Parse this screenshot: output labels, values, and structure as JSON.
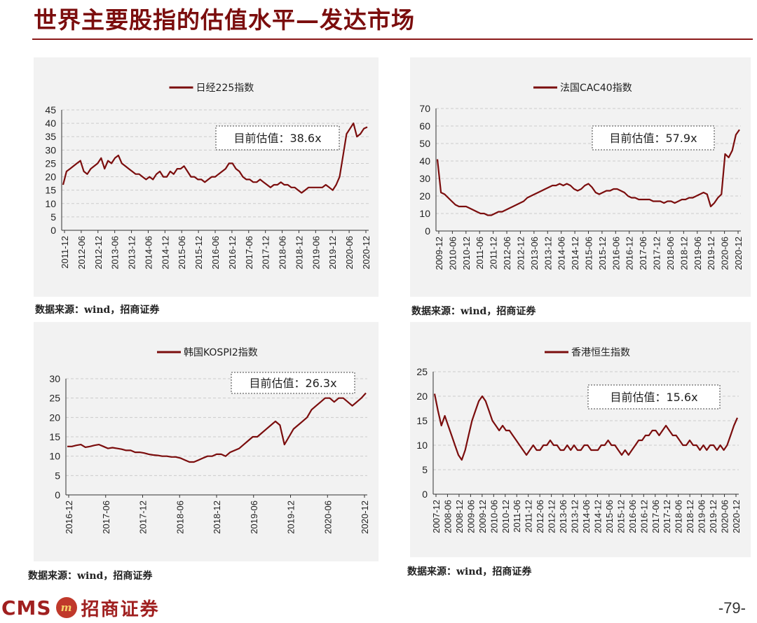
{
  "header": {
    "title": "世界主要股指的估值水平—发达市场"
  },
  "footer": {
    "brand_en": "CMS",
    "brand_cn": "招商证券",
    "page_number": "-79-"
  },
  "colors": {
    "line": "#7b0d0d",
    "title": "#7b0d0d",
    "panel_bg": "#f2f2f2",
    "grid": "#cccccc"
  },
  "chart_data": [
    {
      "type": "line",
      "title": "日经225指数",
      "annotation": "目前估值：38.6x",
      "ylim": [
        0,
        45
      ],
      "yticks": [
        0,
        5,
        10,
        15,
        20,
        25,
        30,
        35,
        40,
        45
      ],
      "xlabels": [
        "2011-12",
        "2012-06",
        "2012-12",
        "2013-06",
        "2013-12",
        "2014-06",
        "2014-12",
        "2015-06",
        "2015-12",
        "2016-06",
        "2016-12",
        "2017-06",
        "2017-12",
        "2018-06",
        "2018-12",
        "2019-06",
        "2019-12",
        "2020-06",
        "2020-12"
      ],
      "series": [
        {
          "values": [
            17,
            22,
            23,
            24,
            25,
            26,
            22,
            21,
            23,
            24,
            25,
            27,
            23,
            26,
            25,
            27,
            28,
            25,
            24,
            23,
            22,
            21,
            21,
            20,
            19,
            20,
            19,
            21,
            22,
            20,
            20,
            22,
            21,
            23,
            23,
            24,
            22,
            20,
            20,
            19,
            19,
            18,
            19,
            20,
            20,
            21,
            22,
            23,
            25,
            25,
            23,
            22,
            20,
            19,
            19,
            18,
            18,
            19,
            18,
            17,
            16,
            17,
            17,
            18,
            17,
            17,
            16,
            16,
            15,
            14,
            15,
            16,
            16,
            16,
            16,
            16,
            17,
            16,
            15,
            17,
            20,
            28,
            36,
            38,
            40,
            35,
            36,
            38,
            38.6
          ]
        }
      ],
      "source": "数据来源：wind，招商证券"
    },
    {
      "type": "line",
      "title": "法国CAC40指数",
      "annotation": "目前估值：57.9x",
      "ylim": [
        0,
        70
      ],
      "yticks": [
        0,
        10,
        20,
        30,
        40,
        50,
        60,
        70
      ],
      "xlabels": [
        "2009-12",
        "2010-06",
        "2010-12",
        "2011-06",
        "2011-12",
        "2012-06",
        "2012-12",
        "2013-06",
        "2013-12",
        "2014-06",
        "2014-12",
        "2015-06",
        "2015-12",
        "2016-06",
        "2016-12",
        "2017-06",
        "2017-12",
        "2018-06",
        "2018-12",
        "2019-06",
        "2019-12",
        "2020-06",
        "2020-12"
      ],
      "series": [
        {
          "values": [
            41,
            22,
            21,
            19,
            17,
            15,
            14,
            14,
            14,
            13,
            12,
            11,
            10,
            10,
            9,
            9,
            10,
            11,
            11,
            12,
            13,
            14,
            15,
            16,
            17,
            19,
            20,
            21,
            22,
            23,
            24,
            25,
            26,
            26,
            27,
            26,
            27,
            26,
            24,
            23,
            24,
            26,
            27,
            25,
            22,
            21,
            22,
            23,
            23,
            24,
            24,
            23,
            22,
            20,
            19,
            19,
            18,
            18,
            18,
            18,
            17,
            17,
            17,
            16,
            17,
            17,
            16,
            17,
            18,
            18,
            19,
            19,
            20,
            21,
            22,
            21,
            14,
            16,
            19,
            21,
            44,
            42,
            46,
            55,
            57.9
          ]
        }
      ],
      "source": "数据来源：wind，招商证券"
    },
    {
      "type": "line",
      "title": "韩国KOSPI2指数",
      "annotation": "目前估值：26.3x",
      "ylim": [
        0,
        30
      ],
      "yticks": [
        0,
        5,
        10,
        15,
        20,
        25,
        30
      ],
      "xlabels": [
        "2016-12",
        "2017-06",
        "2017-12",
        "2018-06",
        "2018-12",
        "2019-06",
        "2019-12",
        "2020-06",
        "2020-12"
      ],
      "series": [
        {
          "values": [
            12.5,
            12.5,
            12.8,
            13,
            12.3,
            12.5,
            12.8,
            13,
            12.5,
            12,
            12.2,
            12,
            11.8,
            11.5,
            11.5,
            11,
            11,
            10.8,
            10.5,
            10.3,
            10.2,
            10,
            10,
            9.8,
            9.8,
            9.5,
            9,
            8.5,
            8.5,
            9,
            9.5,
            10,
            10,
            10.5,
            10.5,
            10,
            11,
            11.5,
            12,
            13,
            14,
            15,
            15,
            16,
            17,
            18,
            19,
            18,
            13,
            15,
            17,
            18,
            19,
            20,
            22,
            23,
            24,
            25,
            25,
            24,
            25,
            25,
            24,
            23,
            24,
            25,
            26.3
          ]
        }
      ],
      "source": "数据来源：wind，招商证券"
    },
    {
      "type": "line",
      "title": "香港恒生指数",
      "annotation": "目前估值：15.6x",
      "ylim": [
        0,
        25
      ],
      "yticks": [
        0,
        5,
        10,
        15,
        20,
        25
      ],
      "xlabels": [
        "2007-12",
        "2008-06",
        "2008-12",
        "2009-06",
        "2009-12",
        "2010-06",
        "2010-12",
        "2011-06",
        "2011-12",
        "2012-06",
        "2012-12",
        "2013-06",
        "2013-12",
        "2014-06",
        "2014-12",
        "2015-06",
        "2015-12",
        "2016-06",
        "2016-12",
        "2017-06",
        "2017-12",
        "2018-06",
        "2018-12",
        "2019-06",
        "2019-12",
        "2020-06",
        "2020-12"
      ],
      "series": [
        {
          "values": [
            20.5,
            17,
            14,
            16,
            14,
            12,
            10,
            8,
            7,
            9,
            12,
            15,
            17,
            19,
            20,
            19,
            17,
            15,
            14,
            13,
            14,
            13,
            13,
            12,
            11,
            10,
            9,
            8,
            9,
            10,
            9,
            9,
            10,
            10,
            11,
            10,
            10,
            9,
            9,
            10,
            9,
            10,
            9,
            9,
            10,
            10,
            9,
            9,
            9,
            10,
            10,
            11,
            10,
            10,
            9,
            8,
            9,
            8,
            9,
            10,
            11,
            11,
            12,
            12,
            13,
            13,
            12,
            13,
            14,
            13,
            12,
            12,
            11,
            10,
            10,
            11,
            10,
            10,
            9,
            10,
            9,
            10,
            10,
            9,
            10,
            9,
            10,
            12,
            14,
            15.6
          ]
        }
      ],
      "source": "数据来源：wind，招商证券"
    }
  ]
}
